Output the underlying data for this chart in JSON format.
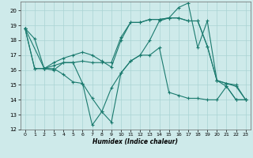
{
  "xlabel": "Humidex (Indice chaleur)",
  "background_color": "#ceeaea",
  "grid_color": "#aad4d4",
  "line_color": "#1a7a6e",
  "xlim": [
    -0.5,
    23.5
  ],
  "ylim": [
    12,
    20.6
  ],
  "yticks": [
    12,
    13,
    14,
    15,
    16,
    17,
    18,
    19,
    20
  ],
  "xticks": [
    0,
    1,
    2,
    3,
    4,
    5,
    6,
    7,
    8,
    9,
    10,
    11,
    12,
    13,
    14,
    15,
    16,
    17,
    18,
    19,
    20,
    21,
    22,
    23
  ],
  "series": [
    {
      "x": [
        0,
        1,
        2,
        3,
        4,
        5,
        6,
        7,
        8,
        9,
        10,
        11,
        12,
        13,
        14,
        15,
        16,
        17,
        18,
        19,
        20,
        21,
        22,
        23
      ],
      "y": [
        18.8,
        18.1,
        16.1,
        16.1,
        15.7,
        15.2,
        15.1,
        14.1,
        13.2,
        12.5,
        15.8,
        16.6,
        17.0,
        17.0,
        17.5,
        14.5,
        14.3,
        14.1,
        14.1,
        14.0,
        14.0,
        14.9,
        14.0,
        14.0
      ]
    },
    {
      "x": [
        0,
        1,
        2,
        3,
        4,
        5,
        6,
        7,
        8,
        9,
        10,
        11,
        12,
        13,
        14,
        15,
        16,
        17,
        18,
        19,
        20,
        21,
        22,
        23
      ],
      "y": [
        18.8,
        16.1,
        16.1,
        16.3,
        16.5,
        16.5,
        16.6,
        16.5,
        16.5,
        16.5,
        18.2,
        19.2,
        19.2,
        19.4,
        19.4,
        19.5,
        19.5,
        19.3,
        19.3,
        17.6,
        15.3,
        14.9,
        14.0,
        14.0
      ]
    },
    {
      "x": [
        0,
        1,
        2,
        3,
        4,
        5,
        6,
        7,
        8,
        9,
        10,
        11,
        12,
        13,
        14,
        15,
        16,
        17,
        18,
        19,
        20,
        21,
        22,
        23
      ],
      "y": [
        18.8,
        16.1,
        16.1,
        16.0,
        16.5,
        16.5,
        15.1,
        12.3,
        13.2,
        14.8,
        15.8,
        16.6,
        17.0,
        18.0,
        19.3,
        19.5,
        20.2,
        20.5,
        17.5,
        19.3,
        15.3,
        15.1,
        14.9,
        14.0
      ]
    },
    {
      "x": [
        0,
        2,
        3,
        4,
        5,
        6,
        7,
        8,
        9,
        10,
        11,
        12,
        13,
        14,
        15,
        16,
        17,
        18,
        19,
        20,
        21,
        22,
        23
      ],
      "y": [
        18.8,
        16.1,
        16.5,
        16.8,
        17.0,
        17.2,
        17.0,
        16.6,
        16.2,
        18.0,
        19.2,
        19.2,
        19.4,
        19.4,
        19.5,
        19.5,
        19.3,
        19.3,
        17.6,
        15.3,
        15.1,
        15.0,
        14.0
      ]
    }
  ]
}
